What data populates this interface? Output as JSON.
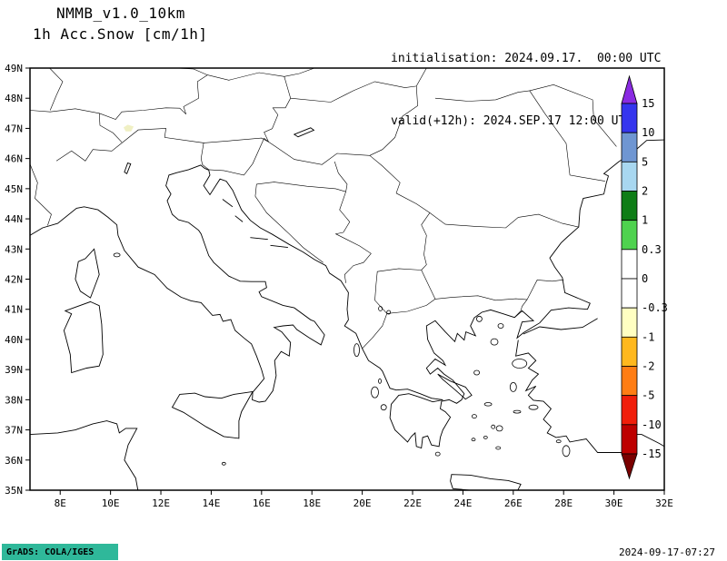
{
  "header": {
    "model": "NMMB_v1.0_10km",
    "field": "1h Acc.Snow [cm/1h]",
    "init_line": "initialisation: 2024.09.17.  00:00 UTC",
    "valid_line": "valid(+12h): 2024.SEP.17 12:00 UTC"
  },
  "footer": {
    "grads_credit": "GrADS: COLA/IGES",
    "stamp_bg": "#2fb89a",
    "timestamp": "2024-09-17-07:27"
  },
  "chart_data": {
    "type": "heatmap",
    "title": "NMMB_v1.0_10km 1h Acc.Snow [cm/1h]",
    "variable": "1-hour accumulated snow",
    "units": "cm/1h",
    "init_time": "2024.09.17 00:00 UTC",
    "valid_time": "2024.SEP.17 12:00 UTC (+12h)",
    "projection": "lat-lon, Central Mediterranean / Balkans domain",
    "lon_range": [
      6.8,
      32
    ],
    "lat_range": [
      35,
      49
    ],
    "lon_ticks": [
      "8E",
      "10E",
      "12E",
      "14E",
      "16E",
      "18E",
      "20E",
      "22E",
      "24E",
      "26E",
      "28E",
      "30E",
      "32E"
    ],
    "lat_ticks": [
      "49N",
      "48N",
      "47N",
      "46N",
      "45N",
      "44N",
      "43N",
      "42N",
      "41N",
      "40N",
      "39N",
      "38N",
      "37N",
      "36N",
      "35N"
    ],
    "grid": false,
    "legend_position": "vertical colorbar inside right edge of map",
    "colorbar": {
      "boundary_labels": [
        "15",
        "10",
        "5",
        "2",
        "1",
        "0.3",
        "0",
        "-0.3",
        "-1",
        "-2",
        "-5",
        "-10",
        "-15"
      ],
      "segment_colors_top_to_bottom": [
        "#3535ee",
        "#6f96d2",
        "#a8d7f0",
        "#0e7d16",
        "#4fd24f",
        "#ffffff",
        "#ffffff",
        "#ffffc2",
        "#ffb81e",
        "#ff7d14",
        "#f01e0a",
        "#bd0000"
      ],
      "arrow_top_color": "#8a2be2",
      "arrow_bottom_color": "#7a0000"
    },
    "field_values": "0 (no accumulated snow) over essentially the whole domain; map interior is white",
    "snow_trace": {
      "lon": 10.7,
      "lat": 47.0,
      "color": "#f0f0c4",
      "note": "tiny pale trace over the Alps near 47N 10.7E"
    }
  }
}
